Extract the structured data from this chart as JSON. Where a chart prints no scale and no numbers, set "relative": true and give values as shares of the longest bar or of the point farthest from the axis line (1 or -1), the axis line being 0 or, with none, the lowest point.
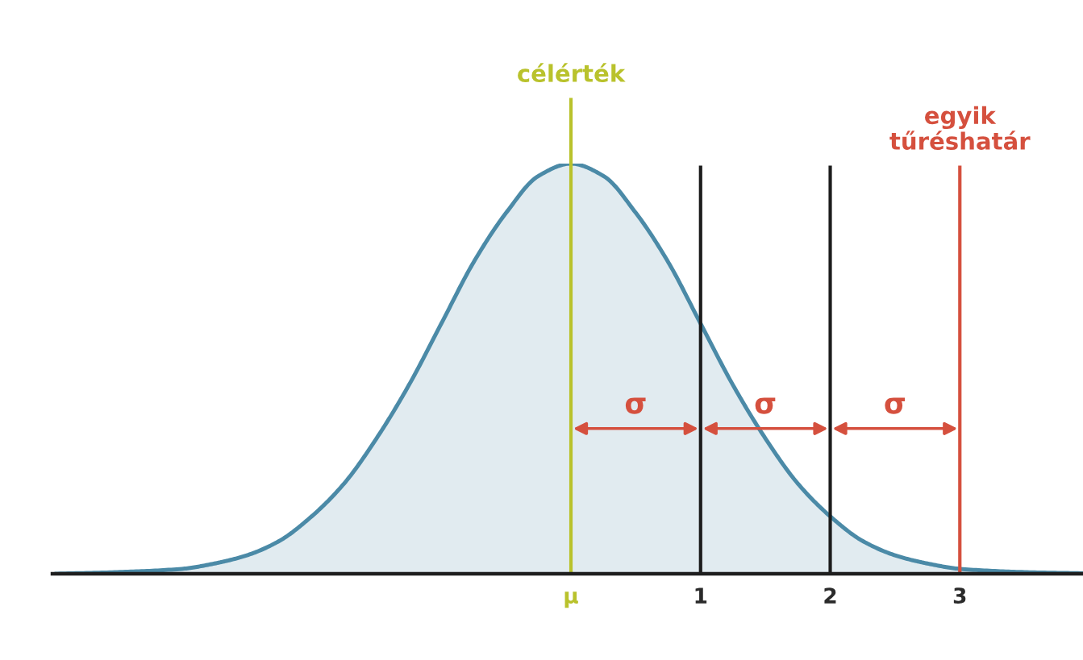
{
  "chart_data": {
    "type": "area",
    "relative": true,
    "x": [
      -3.98,
      -3.5,
      -3,
      -2.75,
      -2.5,
      -2.25,
      -2,
      -1.75,
      -1.5,
      -1.25,
      -1,
      -0.75,
      -0.5,
      -0.25,
      0,
      0.25,
      0.5,
      0.75,
      1,
      1.25,
      1.5,
      1.75,
      2,
      2.25,
      2.5,
      2.75,
      3,
      3.5,
      3.95
    ],
    "series": [
      {
        "color": "#4b8aa7",
        "values": [
          0,
          0.004,
          0.012,
          0.025,
          0.045,
          0.08,
          0.14,
          0.22,
          0.33,
          0.46,
          0.61,
          0.76,
          0.88,
          0.97,
          1,
          0.97,
          0.88,
          0.76,
          0.61,
          0.46,
          0.33,
          0.22,
          0.14,
          0.08,
          0.045,
          0.025,
          0.012,
          0.004,
          0.001
        ]
      }
    ],
    "xlim": [
      -4,
      3.95
    ],
    "xticks": [
      {
        "value": 0,
        "label": "μ"
      },
      1,
      2,
      3
    ],
    "ref_lines": [
      {
        "axis": "x",
        "value": 0,
        "label": "célérték",
        "color": "#b9c22c"
      },
      {
        "axis": "x",
        "value": 1,
        "color": "#1c1c1c"
      },
      {
        "axis": "x",
        "value": 2,
        "color": "#1c1c1c"
      },
      {
        "axis": "x",
        "value": 3,
        "label": "egyik\ntűréshatár",
        "color": "#d5503e"
      }
    ],
    "annotations": [
      "σ",
      "σ",
      "σ"
    ]
  }
}
